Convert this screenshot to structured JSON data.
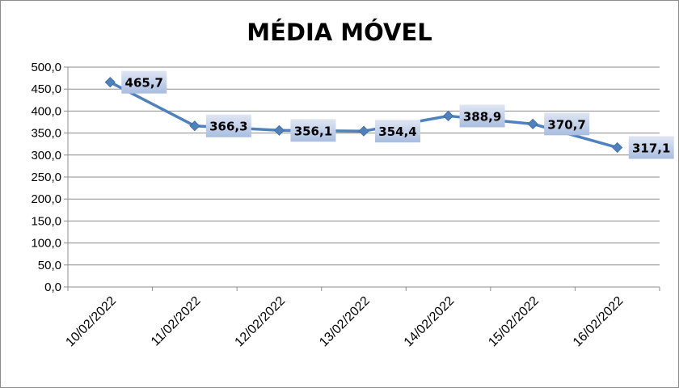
{
  "chart_data": {
    "type": "line",
    "title": "MÉDIA MÓVEL",
    "categories": [
      "10/02/2022",
      "11/02/2022",
      "12/02/2022",
      "13/02/2022",
      "14/02/2022",
      "15/02/2022",
      "16/02/2022"
    ],
    "series": [
      {
        "values": [
          465.7,
          366.3,
          356.1,
          354.4,
          388.9,
          370.7,
          317.1
        ]
      }
    ],
    "data_labels": [
      "465,7",
      "366,3",
      "356,1",
      "354,4",
      "388,9",
      "370,7",
      "317,1"
    ],
    "y_ticks": [
      "0,0",
      "50,0",
      "100,0",
      "150,0",
      "200,0",
      "250,0",
      "300,0",
      "350,0",
      "400,0",
      "450,0",
      "500,0"
    ],
    "ylim": [
      0,
      500
    ],
    "y_step": 50,
    "grid": true,
    "legend": "none",
    "colors": {
      "line": "#4f81bd",
      "marker": "#4f81bd",
      "label_fill_top": "#dfe6f3",
      "label_fill_bottom": "#a9bde0"
    }
  }
}
